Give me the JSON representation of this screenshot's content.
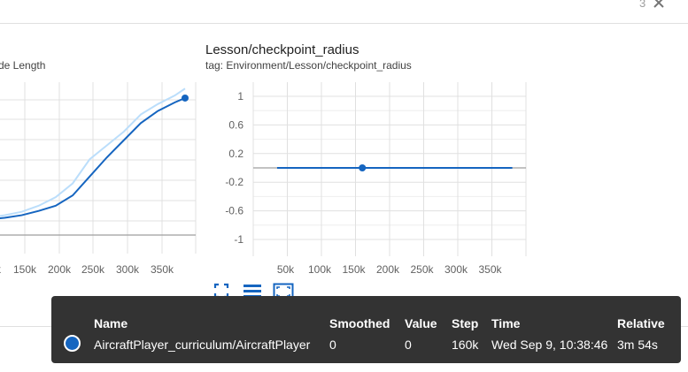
{
  "header": {
    "count": "3",
    "close_icon": "close-icon"
  },
  "left_card": {
    "title_fragment": "de Length",
    "x_ticks": [
      "k",
      "150k",
      "200k",
      "250k",
      "300k",
      "350k"
    ]
  },
  "right_card": {
    "title": "Lesson/checkpoint_radius",
    "tag": "tag: Environment/Lesson/checkpoint_radius",
    "y_ticks": [
      "1",
      "0.6",
      "0.2",
      "-0.2",
      "-0.6",
      "-1"
    ],
    "x_ticks": [
      "50k",
      "100k",
      "150k",
      "200k",
      "250k",
      "300k",
      "350k"
    ]
  },
  "toolbar": {
    "icons": [
      "fullscreen-icon",
      "list-icon",
      "fit-domain-icon"
    ]
  },
  "tooltip": {
    "headers": {
      "name": "Name",
      "smoothed": "Smoothed",
      "value": "Value",
      "step": "Step",
      "time": "Time",
      "relative": "Relative"
    },
    "row": {
      "name": "AircraftPlayer_curriculum/AircraftPlayer",
      "smoothed": "0",
      "value": "0",
      "step": "160k",
      "time": "Wed Sep 9, 10:38:46",
      "relative": "3m 54s"
    }
  },
  "colors": {
    "series": "#1565c0",
    "series_raw": "#bbdefb",
    "tooltip_bg": "#333333"
  },
  "chart_data": [
    {
      "type": "line",
      "title": "",
      "ylabel": "",
      "xlabel": "",
      "x_ticks": [
        "k",
        "150k",
        "200k",
        "250k",
        "300k",
        "350k"
      ],
      "xlim": [
        100000,
        390000
      ],
      "ylim": [
        0,
        8
      ],
      "grid": true,
      "series": [
        {
          "x": [
            100000,
            125000,
            150000,
            175000,
            200000,
            225000,
            250000,
            275000,
            300000,
            325000,
            350000,
            375000,
            390000
          ],
          "values": [
            0.9,
            1.0,
            1.15,
            1.4,
            1.7,
            2.3,
            3.4,
            4.5,
            5.5,
            6.5,
            7.2,
            7.7,
            7.95
          ]
        },
        {
          "x": [
            100000,
            125000,
            150000,
            175000,
            200000,
            225000,
            250000,
            275000,
            300000,
            325000,
            350000,
            375000,
            390000
          ],
          "values": [
            1.0,
            1.15,
            1.35,
            1.7,
            2.2,
            3.0,
            4.4,
            5.2,
            6.0,
            7.0,
            7.6,
            8.1,
            8.5
          ]
        }
      ]
    },
    {
      "type": "line",
      "title": "Lesson/checkpoint_radius",
      "subtitle": "tag: Environment/Lesson/checkpoint_radius",
      "xlabel": "",
      "ylabel": "",
      "x_ticks": [
        "50k",
        "100k",
        "150k",
        "200k",
        "250k",
        "300k",
        "350k"
      ],
      "y_ticks": [
        "1",
        "0.6",
        "0.2",
        "-0.2",
        "-0.6",
        "-1"
      ],
      "xlim": [
        0,
        400000
      ],
      "ylim": [
        -1.2,
        1.2
      ],
      "grid": true,
      "series": [
        {
          "name": "AircraftPlayer_curriculum/AircraftPlayer",
          "x": [
            35000,
            160000,
            380000
          ],
          "values": [
            0,
            0,
            0
          ],
          "highlight": {
            "x": 160000,
            "y": 0
          }
        }
      ]
    }
  ]
}
